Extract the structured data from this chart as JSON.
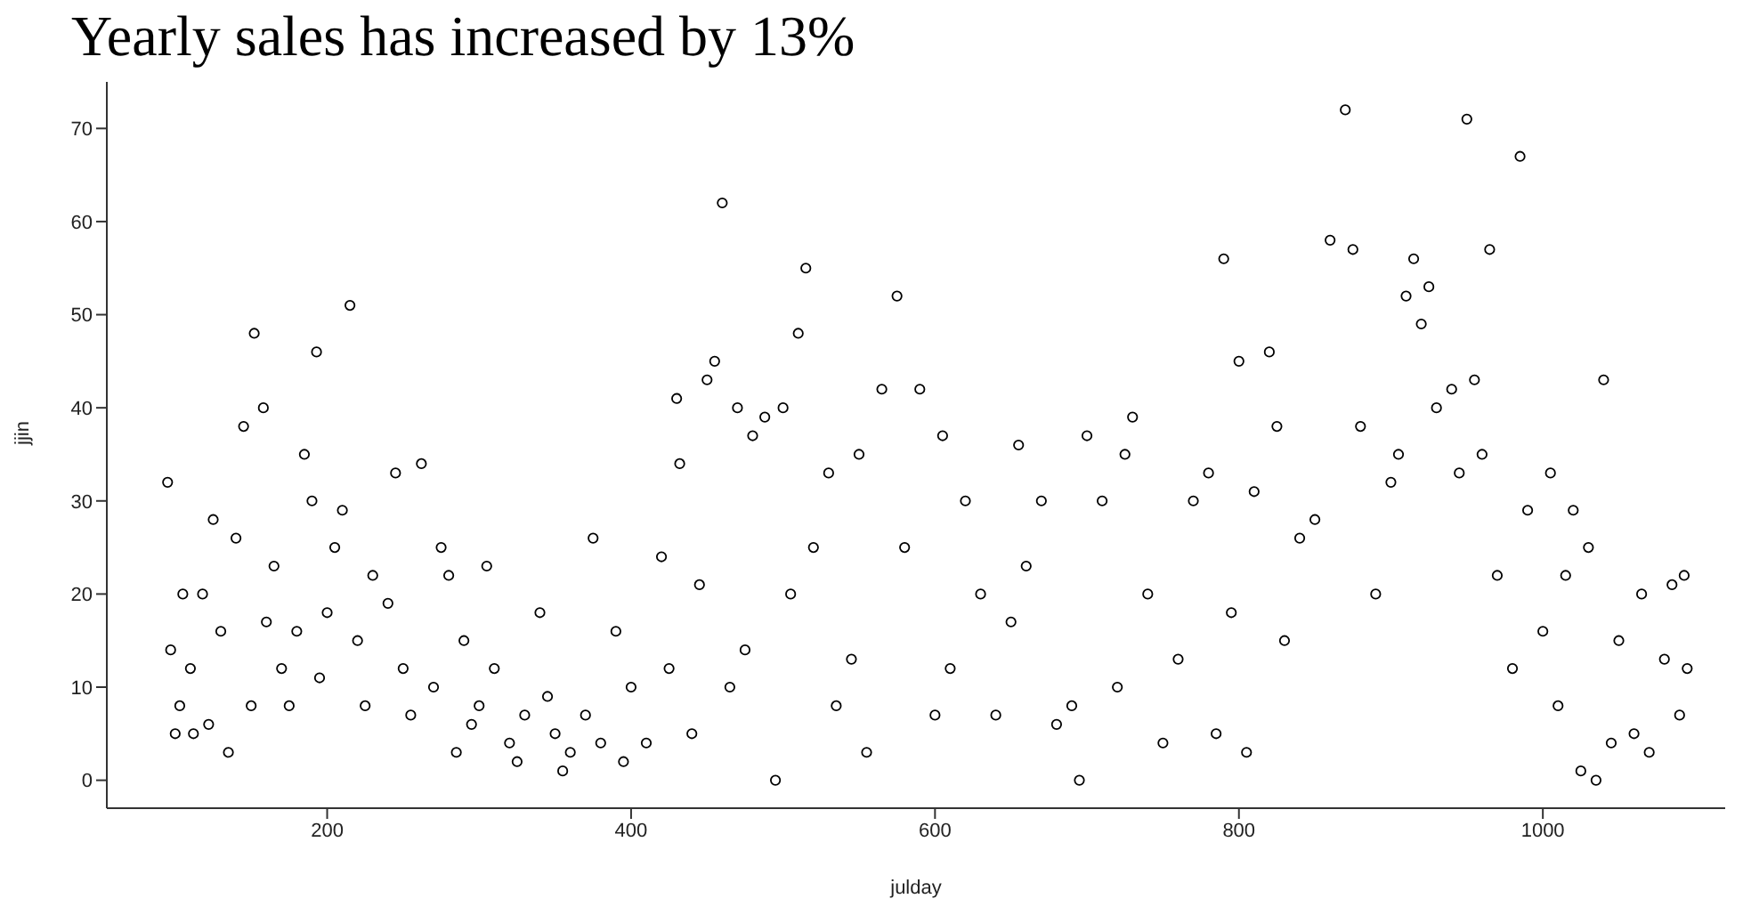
{
  "chart_data": {
    "type": "scatter",
    "title": "Yearly sales has increased by 13%",
    "xlabel": "julday",
    "ylabel": "jjin",
    "x": [
      95,
      97,
      100,
      103,
      105,
      110,
      112,
      118,
      122,
      125,
      130,
      135,
      140,
      145,
      150,
      152,
      158,
      160,
      165,
      170,
      175,
      180,
      185,
      190,
      193,
      195,
      200,
      205,
      210,
      215,
      220,
      225,
      230,
      240,
      245,
      250,
      255,
      262,
      270,
      275,
      280,
      285,
      290,
      295,
      300,
      305,
      310,
      320,
      325,
      330,
      340,
      345,
      350,
      355,
      360,
      370,
      375,
      380,
      390,
      395,
      400,
      410,
      420,
      425,
      430,
      432,
      440,
      445,
      450,
      455,
      460,
      465,
      470,
      475,
      480,
      488,
      495,
      500,
      505,
      510,
      515,
      520,
      530,
      535,
      545,
      550,
      555,
      565,
      575,
      580,
      590,
      600,
      605,
      610,
      620,
      630,
      640,
      650,
      655,
      660,
      670,
      680,
      690,
      695,
      700,
      710,
      720,
      725,
      730,
      740,
      750,
      760,
      770,
      780,
      785,
      790,
      795,
      800,
      805,
      810,
      820,
      825,
      830,
      840,
      850,
      860,
      870,
      875,
      880,
      890,
      900,
      905,
      910,
      915,
      920,
      925,
      930,
      940,
      945,
      950,
      955,
      960,
      965,
      970,
      980,
      985,
      990,
      1000,
      1005,
      1010,
      1015,
      1020,
      1025,
      1030,
      1035,
      1040,
      1045,
      1050,
      1060,
      1065,
      1070,
      1080,
      1085,
      1090,
      1093,
      1095
    ],
    "values": [
      32,
      14,
      5,
      8,
      20,
      12,
      5,
      20,
      6,
      28,
      16,
      3,
      26,
      38,
      8,
      48,
      40,
      17,
      23,
      12,
      8,
      16,
      35,
      30,
      46,
      11,
      18,
      25,
      29,
      51,
      15,
      8,
      22,
      19,
      33,
      12,
      7,
      34,
      10,
      25,
      22,
      3,
      15,
      6,
      8,
      23,
      12,
      4,
      2,
      7,
      18,
      9,
      5,
      1,
      3,
      7,
      26,
      4,
      16,
      2,
      10,
      4,
      24,
      12,
      41,
      34,
      5,
      21,
      43,
      45,
      62,
      10,
      40,
      14,
      37,
      39,
      0,
      40,
      20,
      48,
      55,
      25,
      33,
      8,
      13,
      35,
      3,
      42,
      52,
      25,
      42,
      7,
      37,
      12,
      30,
      20,
      7,
      17,
      36,
      23,
      30,
      6,
      8,
      0,
      37,
      30,
      10,
      35,
      39,
      20,
      4,
      13,
      30,
      33,
      5,
      56,
      18,
      45,
      3,
      31,
      46,
      38,
      15,
      26,
      28,
      58,
      72,
      57,
      38,
      20,
      32,
      35,
      52,
      56,
      49,
      53,
      40,
      42,
      33,
      71,
      43,
      35,
      57,
      22,
      12,
      67,
      29,
      16,
      33,
      8,
      22,
      29,
      1,
      25,
      0,
      43,
      4,
      15,
      5,
      20,
      3,
      13,
      21,
      7,
      22,
      12
    ],
    "color": "#000000",
    "marker": "circle",
    "xlim": [
      55,
      1120
    ],
    "xticks": [
      200,
      400,
      600,
      800,
      1000
    ],
    "ylim": [
      -3,
      75
    ],
    "yticks": [
      0,
      10,
      20,
      30,
      40,
      50,
      60,
      70
    ],
    "grid": false
  }
}
